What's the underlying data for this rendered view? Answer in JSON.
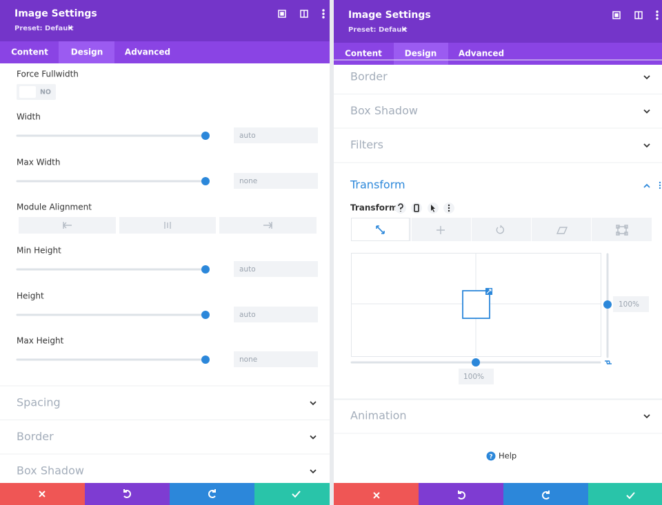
{
  "left": {
    "title": "Image Settings",
    "preset": "Preset: Default",
    "tabs": [
      "Content",
      "Design",
      "Advanced"
    ],
    "force_fullwidth": {
      "label": "Force Fullwidth",
      "toggle": "NO"
    },
    "width": {
      "label": "Width",
      "value": "auto"
    },
    "max_width": {
      "label": "Max Width",
      "value": "none"
    },
    "module_alignment": {
      "label": "Module Alignment"
    },
    "min_height": {
      "label": "Min Height",
      "value": "auto"
    },
    "height": {
      "label": "Height",
      "value": "auto"
    },
    "max_height": {
      "label": "Max Height",
      "value": "none"
    },
    "sections": [
      "Spacing",
      "Border",
      "Box Shadow"
    ]
  },
  "right": {
    "title": "Image Settings",
    "preset": "Preset: Default",
    "tabs": [
      "Content",
      "Design",
      "Advanced"
    ],
    "sections_top": [
      "Border",
      "Box Shadow",
      "Filters"
    ],
    "open_section": "Transform",
    "transform_label": "Transform",
    "scale_y": "100%",
    "scale_x": "100%",
    "sections_bottom": [
      "Animation"
    ],
    "help": "Help"
  }
}
